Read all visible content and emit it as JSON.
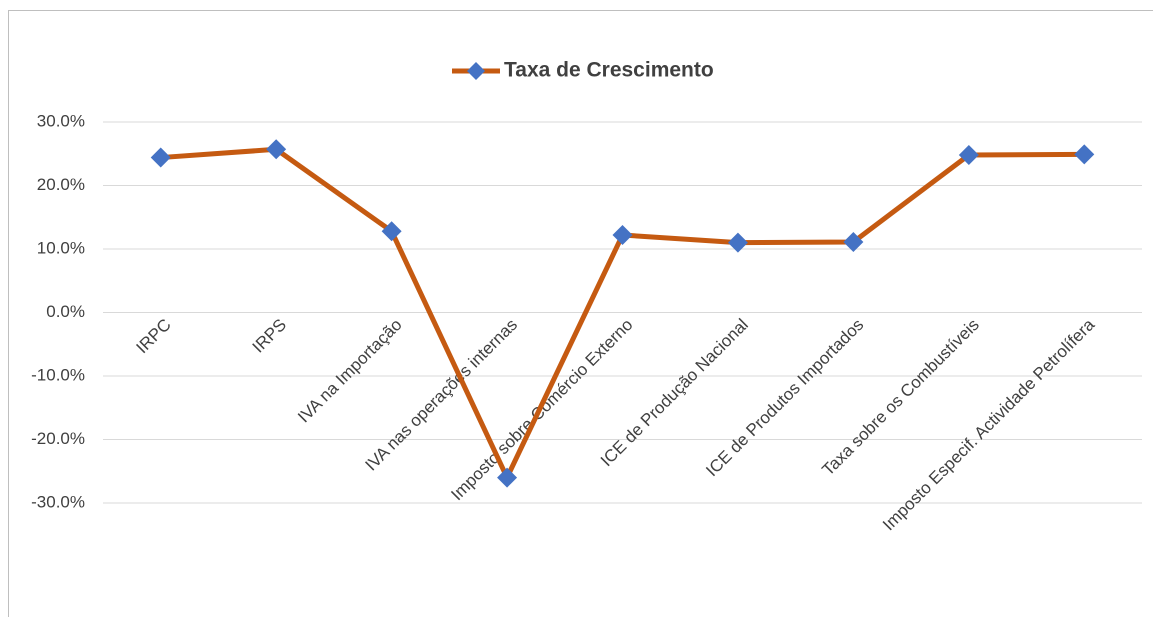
{
  "chart_data": {
    "type": "line",
    "categories": [
      "IRPC",
      "IRPS",
      "IVA na Importação",
      "IVA nas operações internas",
      "Imposto sobre Comércio Externo",
      "ICE de Produção Nacional",
      "ICE de Produtos Importados",
      "Taxa sobre os Combustíveis",
      "Imposto Especif. Actividade Petrolífera"
    ],
    "series": [
      {
        "name": "Taxa de Crescimento",
        "color": "#c55a11",
        "marker_color": "#4472c4",
        "values": [
          24.4,
          25.7,
          12.8,
          -26.0,
          12.2,
          11.0,
          11.1,
          24.8,
          24.9
        ]
      }
    ],
    "ylim": [
      -30,
      30
    ],
    "yticks": [
      {
        "value": -30,
        "label": "-30.0%"
      },
      {
        "value": -20,
        "label": "-20.0%"
      },
      {
        "value": -10,
        "label": "-10.0%"
      },
      {
        "value": 0,
        "label": "0.0%"
      },
      {
        "value": 10,
        "label": "10.0%"
      },
      {
        "value": 20,
        "label": "20.0%"
      },
      {
        "value": 30,
        "label": "30.0%"
      }
    ],
    "grid": true,
    "legend": "top"
  }
}
